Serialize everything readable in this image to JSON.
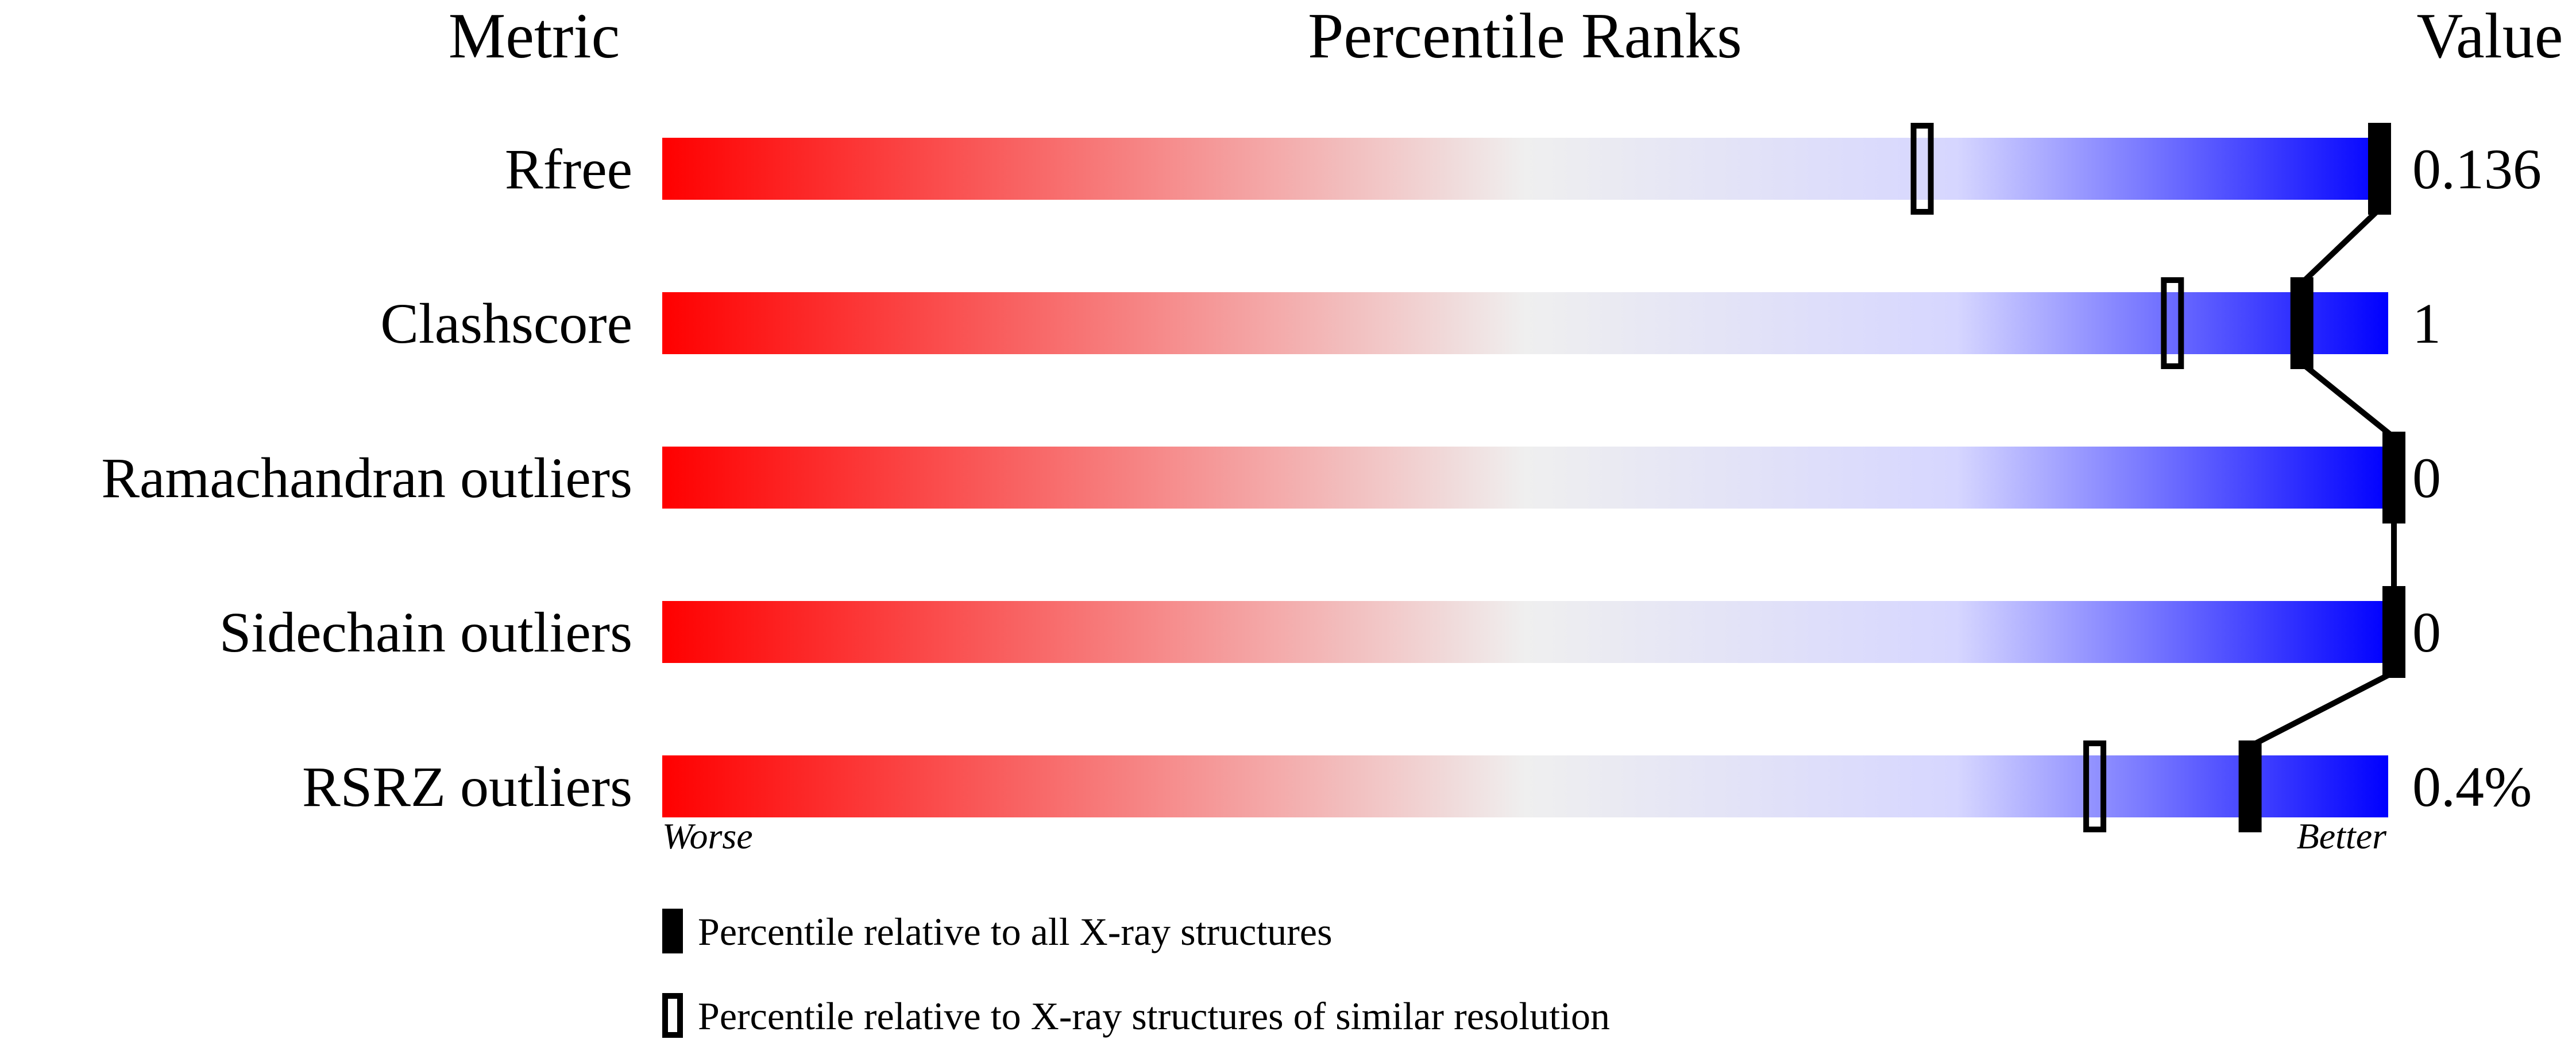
{
  "chart_data": {
    "type": "bar",
    "headers": {
      "metric": "Metric",
      "ranks": "Percentile Ranks",
      "value": "Value"
    },
    "xlim": [
      0,
      100
    ],
    "axis_labels": {
      "left": "Worse",
      "right": "Better"
    },
    "gradient_colors": [
      "#ff0000",
      "#efefef",
      "#d6d6ff",
      "#0000ff"
    ],
    "rows": [
      {
        "metric": "Rfree",
        "value": "0.136",
        "percentile_all": 99.5,
        "percentile_similar": 73
      },
      {
        "metric": "Clashscore",
        "value": "1",
        "percentile_all": 95,
        "percentile_similar": 87.5
      },
      {
        "metric": "Ramachandran outliers",
        "value": "0",
        "percentile_all": 100,
        "percentile_similar": null
      },
      {
        "metric": "Sidechain outliers",
        "value": "0",
        "percentile_all": 100,
        "percentile_similar": null
      },
      {
        "metric": "RSRZ outliers",
        "value": "0.4%",
        "percentile_all": 92,
        "percentile_similar": 83
      }
    ],
    "legend": [
      {
        "marker": "filled",
        "label": "Percentile relative to all X-ray structures"
      },
      {
        "marker": "open",
        "label": "Percentile relative to X-ray structures of similar resolution"
      }
    ]
  }
}
